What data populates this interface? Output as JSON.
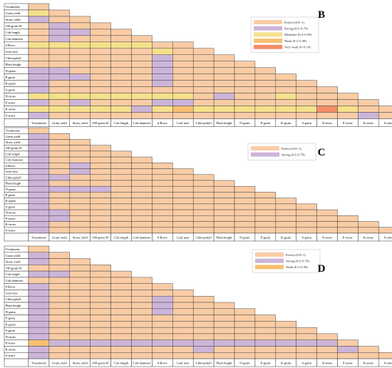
{
  "legend_levels": {
    "P": {
      "label": "Perfect (0.8~1)",
      "color": "#F9CCA5"
    },
    "S": {
      "label": "Strong (0.6~0.79)",
      "color": "#CDB5DA"
    },
    "M": {
      "label": "Moderate (0.4~0.59)",
      "color": "#F5E08C"
    },
    "W": {
      "label": "Weak (0.2~0.39)",
      "color": "#F7C070"
    },
    "V": {
      "label": "Very weak (0~0.19)",
      "color": "#F48C6A"
    }
  },
  "variables": [
    "Treatments",
    "Grain yield",
    "Straw yield",
    "100-grain W.",
    "Cob length",
    "Cob diameter",
    "# Rows",
    "Leaf area",
    "Chlorophyll",
    "Plant height",
    "N-grain",
    "P-grain",
    "K-grain",
    "S-grain",
    "N-straw",
    "P-straw",
    "K-straw",
    "S-straw"
  ],
  "chart_data": [
    {
      "type": "heatmap",
      "title": "B",
      "legend": [
        "P",
        "S",
        "M",
        "W",
        "V"
      ],
      "rows": [
        "",
        "M",
        "SP",
        "PSP",
        "PSSP",
        "PSPPP",
        "MMMMMMP",
        "PPPPPPMP",
        "PPPPPPSPP",
        "PPPPPPSPPP",
        "SSPPPPSPPPP",
        "SSSPPPSPPPPP",
        "SPPPPPSPPPPPP",
        "SPPPPPPPPPPPPP",
        "MMMMMMMMPSPPMPP",
        "SPSPPPSSPPPPPPPP",
        "MMMMMSMWMMMMMMVMP",
        "SPPPPPPPPPPPPPPPSP"
      ]
    },
    {
      "type": "heatmap",
      "title": "C",
      "legend": [
        "P",
        "S"
      ],
      "rows": [
        "",
        "S",
        "SP",
        "SPP",
        "SPPP",
        "SPPPP",
        "SPSPPP",
        "SPSPPPP",
        "SSPPPPPP",
        "SPPPPPPPP",
        "SSSSPPPPPP",
        "SPPPPPPPPPP",
        "SPPPPPPPPPPP",
        "SPPPPPPPPPPPP",
        "SSPPPPPPPPPPPP",
        "SSPPPPPPPPPPPPP",
        "SPPPPPPPPPPPPPPP",
        "SPPPPPPPPPPPPPPPP"
      ]
    },
    {
      "type": "heatmap",
      "title": "D",
      "legend": [
        "P",
        "S",
        "W"
      ],
      "rows": [
        "",
        "S",
        "SP",
        "PPP",
        "SSPP",
        "PPPPP",
        "SPPPPP",
        "SPPPPPP",
        "SPPPPPSP",
        "SPPPPPSPP",
        "SPPPPPSPPP",
        "SPPPPPPPPPP",
        "SPPPPPPPPPPP",
        "SPPPPPPPPPPPP",
        "SPPPPPPPPPPPPP",
        "WSSSSSSSSSSSSSS",
        "SPPPPPPPSPPPPPPS",
        "SPPPPPPPPPPPPPPPP"
      ]
    }
  ]
}
